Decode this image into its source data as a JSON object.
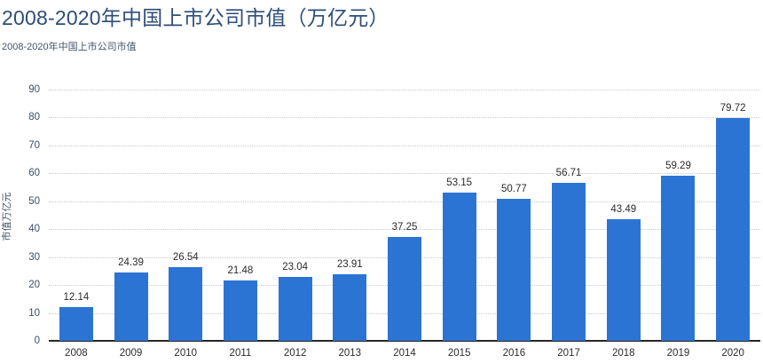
{
  "page": {
    "title": "2008-2020年中国上市公司市值（万亿元）",
    "subtitle": "2008-2020年中国上市公司市值"
  },
  "colors": {
    "bar": "#2C74D4",
    "title_text": "#2D4E79",
    "subtitle_text": "#44546A",
    "y_tick_text": "#3E4E63",
    "data_label_text": "#2B2B2B",
    "gridline": "#C9C9C9",
    "baseline": "#262626",
    "background": "#FFFFFF"
  },
  "chart_data": {
    "type": "bar",
    "title": "2008-2020年中国上市公司市值（万亿元）",
    "subtitle": "2008-2020年中国上市公司市值",
    "categories": [
      "2008",
      "2009",
      "2010",
      "2011",
      "2012",
      "2013",
      "2014",
      "2015",
      "2016",
      "2017",
      "2018",
      "2019",
      "2020"
    ],
    "values": [
      12.14,
      24.39,
      26.54,
      21.48,
      23.04,
      23.91,
      37.25,
      53.15,
      50.77,
      56.71,
      43.49,
      59.29,
      79.72
    ],
    "xlabel": "",
    "ylabel": "市值万亿元",
    "ylim": [
      0,
      90
    ],
    "yticks": [
      0,
      10,
      20,
      30,
      40,
      50,
      60,
      70,
      80,
      90
    ],
    "grid": "horizontal-dotted",
    "legend": "none",
    "data_labels": true,
    "bar_color": "#2C74D4"
  }
}
